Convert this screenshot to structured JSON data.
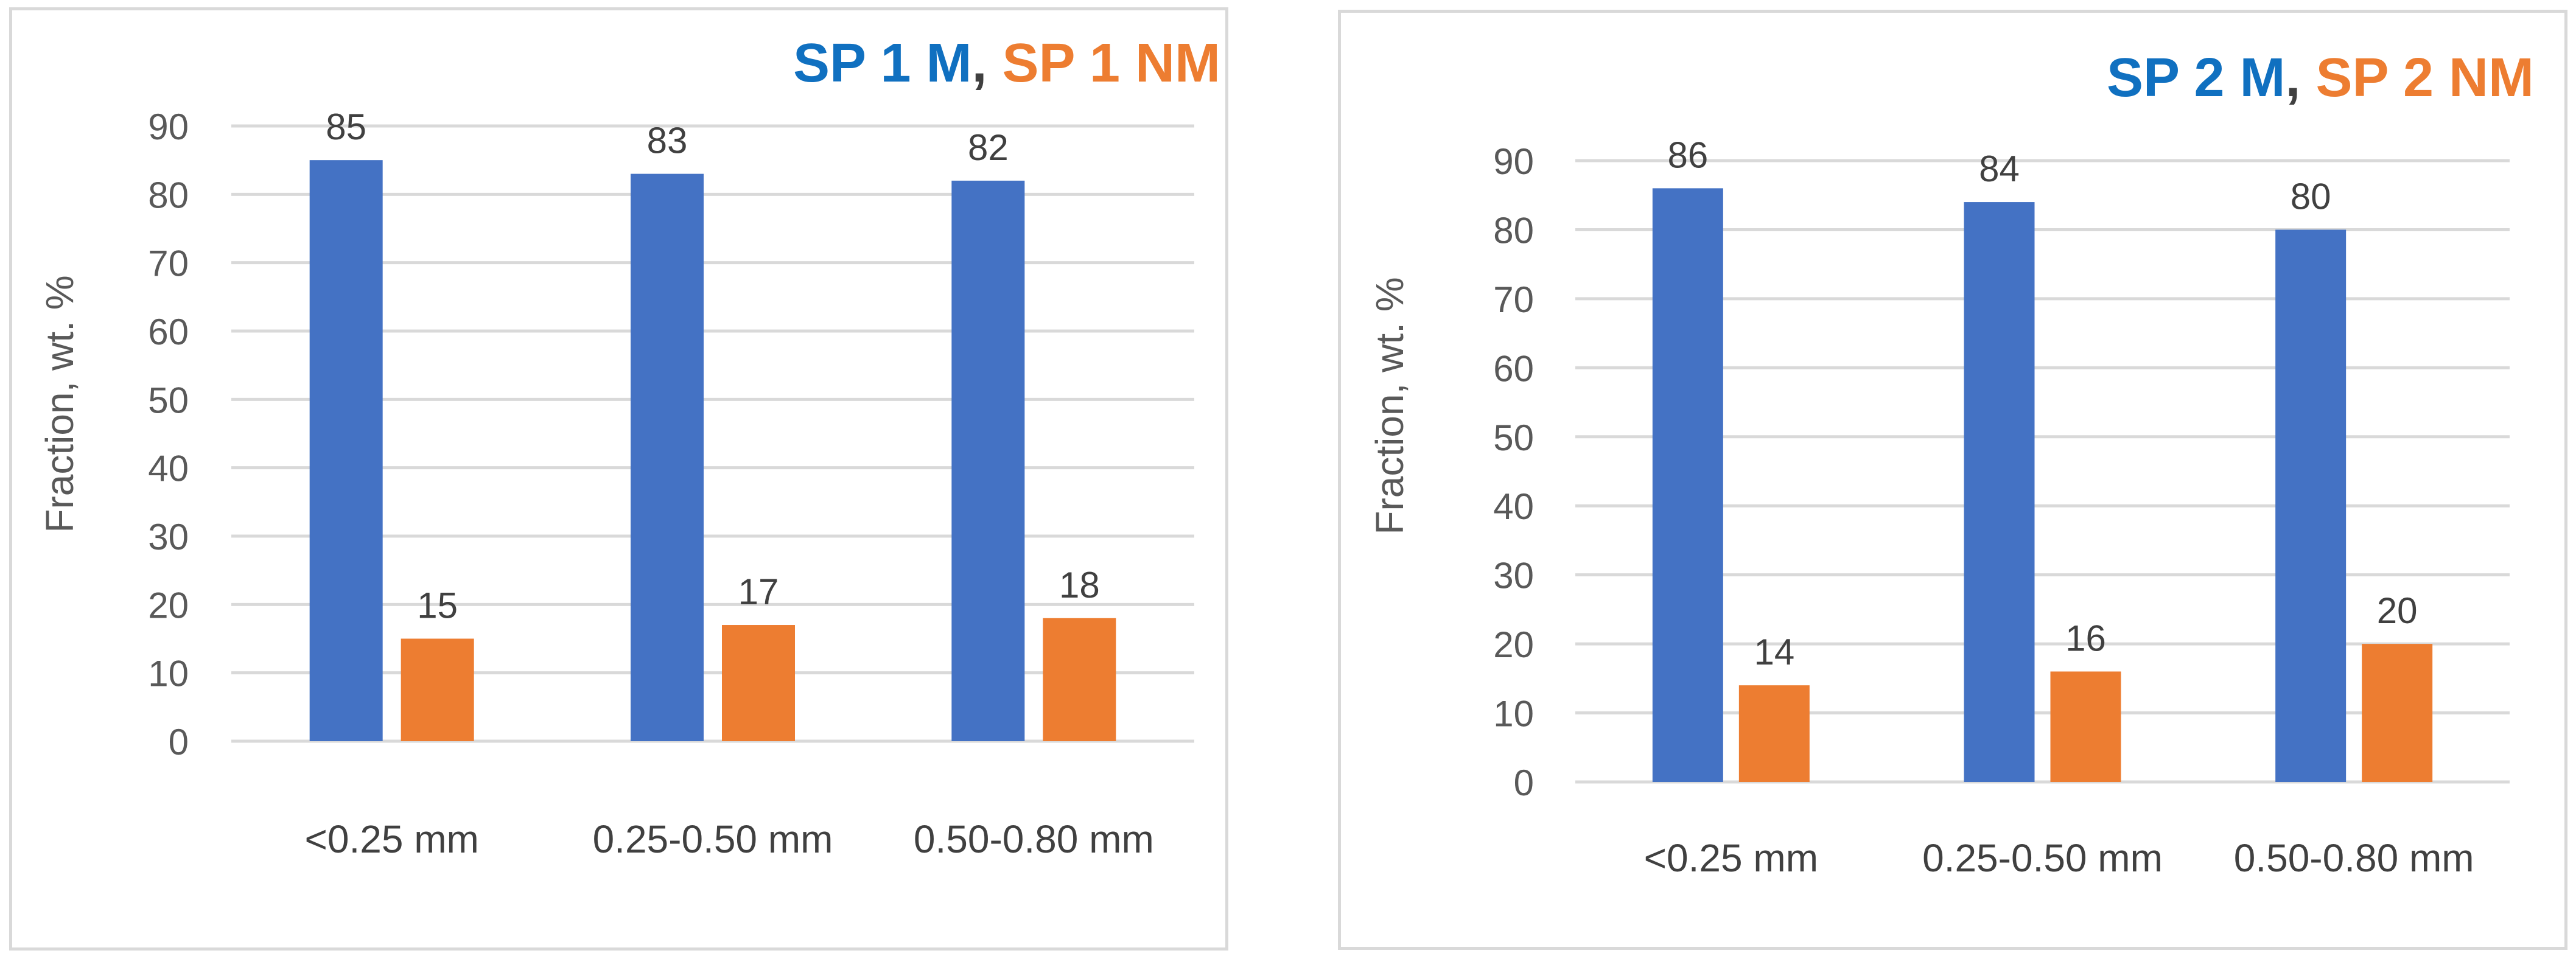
{
  "chart_data": [
    {
      "type": "bar",
      "title": {
        "series_m": "SP 1 M",
        "separator": ",",
        "series_nm": "SP 1 NM"
      },
      "categories": [
        "<0.25 mm",
        "0.25-0.50 mm",
        "0.50-0.80 mm"
      ],
      "series": [
        {
          "name": "SP 1 M",
          "color": "#4472c4",
          "values": [
            85,
            83,
            82
          ]
        },
        {
          "name": "SP 1 NM",
          "color": "#ed7d31",
          "values": [
            15,
            17,
            18
          ]
        }
      ],
      "xlabel": "",
      "ylabel": "Fraction, wt. %",
      "ylim": [
        0,
        90
      ],
      "yticks": [
        0,
        10,
        20,
        30,
        40,
        50,
        60,
        70,
        80,
        90
      ],
      "grid": true,
      "legend": "none"
    },
    {
      "type": "bar",
      "title": {
        "series_m": "SP 2 M",
        "separator": ",",
        "series_nm": "SP 2 NM"
      },
      "categories": [
        "<0.25 mm",
        "0.25-0.50 mm",
        "0.50-0.80 mm"
      ],
      "series": [
        {
          "name": "SP 2 M",
          "color": "#4472c4",
          "values": [
            86,
            84,
            80
          ]
        },
        {
          "name": "SP 2 NM",
          "color": "#ed7d31",
          "values": [
            14,
            16,
            20
          ]
        }
      ],
      "xlabel": "",
      "ylabel": "Fraction, wt. %",
      "ylim": [
        0,
        90
      ],
      "yticks": [
        0,
        10,
        20,
        30,
        40,
        50,
        60,
        70,
        80,
        90
      ],
      "grid": true,
      "legend": "none"
    }
  ]
}
